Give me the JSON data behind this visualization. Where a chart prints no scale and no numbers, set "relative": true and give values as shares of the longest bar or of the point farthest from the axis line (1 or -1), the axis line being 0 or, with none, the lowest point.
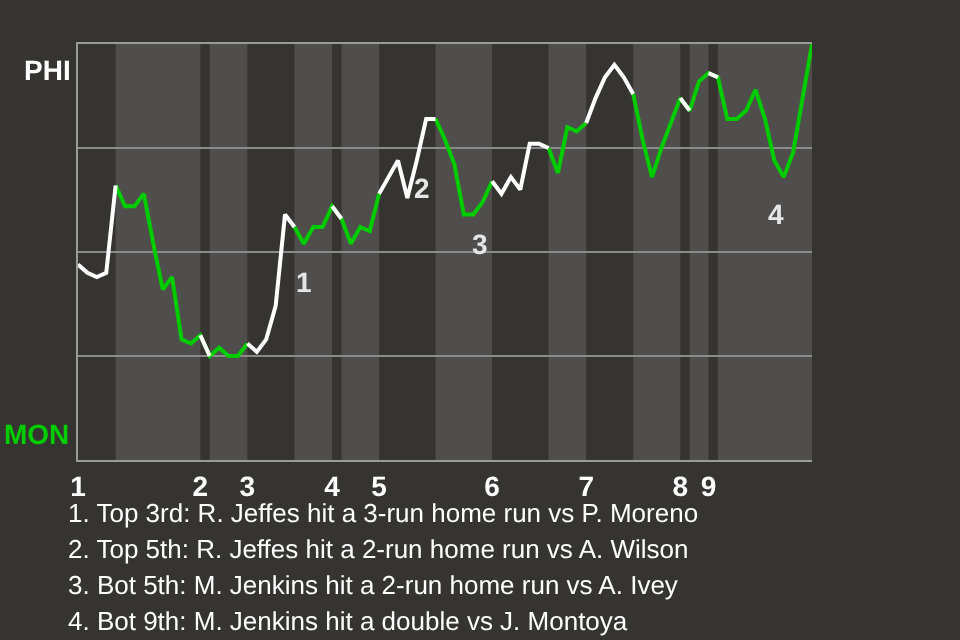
{
  "chart_data": {
    "type": "line",
    "relative": true,
    "categories": [
      "1",
      null,
      null,
      null,
      null,
      null,
      null,
      null,
      null,
      null,
      null,
      null,
      null,
      "2",
      null,
      null,
      null,
      null,
      "3",
      null,
      null,
      null,
      null,
      null,
      null,
      null,
      null,
      "4",
      null,
      null,
      null,
      null,
      "5",
      null,
      null,
      null,
      null,
      null,
      null,
      null,
      null,
      null,
      null,
      null,
      "6",
      null,
      null,
      null,
      null,
      null,
      null,
      null,
      null,
      null,
      "7",
      null,
      null,
      null,
      null,
      null,
      null,
      null,
      null,
      null,
      "8",
      null,
      null,
      "9",
      null,
      null,
      null,
      null,
      null,
      null,
      null,
      null,
      null,
      null,
      null
    ],
    "series": [
      {
        "color": "#ffffff",
        "values": [
          0.47,
          0.45,
          0.44,
          0.45,
          0.66,
          null,
          null,
          null,
          null,
          null,
          null,
          null,
          null,
          0.3,
          0.25,
          null,
          null,
          null,
          0.28,
          0.26,
          0.29,
          0.37,
          0.59,
          0.56,
          null,
          null,
          null,
          0.61,
          0.58,
          null,
          null,
          null,
          0.64,
          0.68,
          0.72,
          0.63,
          0.72,
          0.82,
          0.82,
          null,
          null,
          null,
          null,
          null,
          0.67,
          0.64,
          0.68,
          0.65,
          0.76,
          0.76,
          0.75,
          null,
          null,
          null,
          0.81,
          0.87,
          0.92,
          0.95,
          0.92,
          0.88,
          null,
          null,
          null,
          null,
          0.87,
          0.84,
          null,
          0.93,
          0.92,
          null,
          null,
          null,
          null,
          null,
          null,
          null,
          null,
          null,
          null
        ]
      },
      {
        "color": "#00cc00",
        "values": [
          null,
          null,
          null,
          null,
          0.66,
          0.61,
          0.61,
          0.64,
          0.52,
          0.41,
          0.44,
          0.29,
          0.28,
          0.3,
          0.25,
          0.27,
          0.25,
          0.25,
          0.28,
          null,
          null,
          null,
          null,
          0.56,
          0.52,
          0.56,
          0.56,
          0.61,
          0.58,
          0.52,
          0.56,
          0.55,
          0.64,
          null,
          null,
          null,
          null,
          null,
          0.82,
          0.77,
          0.71,
          0.59,
          0.59,
          0.62,
          0.67,
          null,
          null,
          null,
          null,
          null,
          0.75,
          0.69,
          0.8,
          0.79,
          0.81,
          null,
          null,
          null,
          null,
          0.88,
          0.77,
          0.68,
          0.75,
          0.81,
          0.87,
          0.84,
          0.91,
          0.93,
          0.92,
          0.82,
          0.82,
          0.84,
          0.89,
          0.82,
          0.72,
          0.68,
          0.74,
          0.87,
          1.0
        ]
      }
    ],
    "marker": "none",
    "line_style": "solid",
    "ref_lines": [
      {
        "axis": "y",
        "value": 0.25,
        "label": null,
        "color": "#8a8a8a"
      },
      {
        "axis": "y",
        "value": 0.5,
        "label": null,
        "color": "#8a8a8a"
      },
      {
        "axis": "y",
        "value": 0.75,
        "label": null,
        "color": "#8a8a8a"
      }
    ],
    "annotations": [
      "PHI",
      "MON",
      "1",
      "2",
      "3",
      "4",
      "1. Top 3rd: R. Jeffes hit a 3-run home run vs P. Moreno",
      "2. Top 5th: R. Jeffes hit a 2-run home run vs A. Wilson",
      "3. Bot 5th: M. Jenkins hit a 2-run home run vs A. Ivey",
      "4. Bot 9th: M. Jenkins hit a double vs J. Montoya"
    ]
  }
}
